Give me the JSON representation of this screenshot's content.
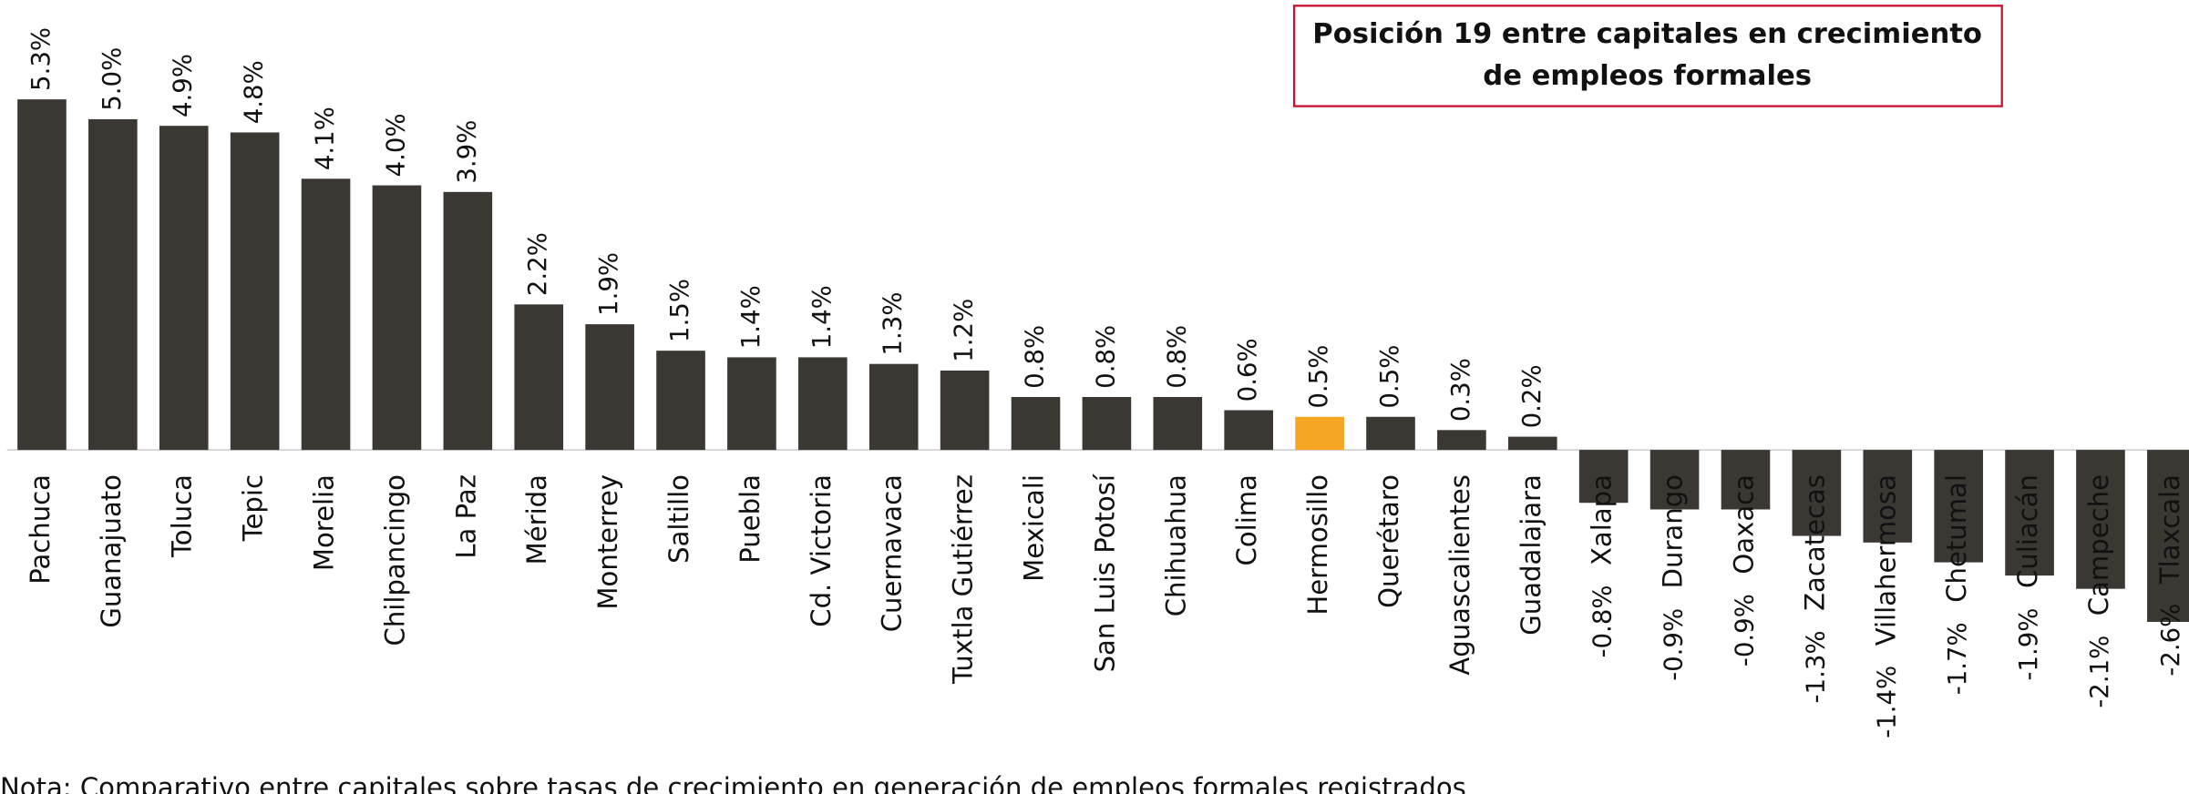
{
  "chart_data": {
    "type": "bar",
    "title": [
      "Posición 19 entre capitales en crecimiento",
      "de empleos formales"
    ],
    "note": "Nota: Comparativo entre capitales sobre tasas de crecimiento en generación de empleos formales registrados",
    "categories": [
      "Pachuca",
      "Guanajuato",
      "Toluca",
      "Tepic",
      "Morelia",
      "Chilpancingo",
      "La Paz",
      "Mérida",
      "Monterrey",
      "Saltillo",
      "Puebla",
      "Cd. Victoria",
      "Cuernavaca",
      "Tuxtla Gutiérrez",
      "Mexicali",
      "San Luis Potosí",
      "Chihuahua",
      "Colima",
      "Hermosillo",
      "Querétaro",
      "Aguascalientes",
      "Guadalajara",
      "Xalapa",
      "Durango",
      "Oaxaca",
      "Zacatecas",
      "Villahermosa",
      "Chetumal",
      "Culiacán",
      "Campeche",
      "Tlaxcala"
    ],
    "values": [
      5.3,
      5.0,
      4.9,
      4.8,
      4.1,
      4.0,
      3.9,
      2.2,
      1.9,
      1.5,
      1.4,
      1.4,
      1.3,
      1.2,
      0.8,
      0.8,
      0.8,
      0.6,
      0.5,
      0.5,
      0.3,
      0.2,
      -0.8,
      -0.9,
      -0.9,
      -1.3,
      -1.4,
      -1.7,
      -1.9,
      -2.1,
      -2.6
    ],
    "value_labels": [
      "5.3%",
      "5.0%",
      "4.9%",
      "4.8%",
      "4.1%",
      "4.0%",
      "3.9%",
      "2.2%",
      "1.9%",
      "1.5%",
      "1.4%",
      "1.4%",
      "1.3%",
      "1.2%",
      "0.8%",
      "0.8%",
      "0.8%",
      "0.6%",
      "0.5%",
      "0.5%",
      "0.3%",
      "0.2%",
      "-0.8%",
      "-0.9%",
      "-0.9%",
      "-1.3%",
      "-1.4%",
      "-1.7%",
      "-1.9%",
      "-2.1%",
      "-2.6%"
    ],
    "colors": [
      "#3b3733",
      "#3b3733",
      "#3b3733",
      "#3b3733",
      "#3b3733",
      "#3b3733",
      "#3b3733",
      "#3b3733",
      "#3b3733",
      "#3b3733",
      "#3b3733",
      "#3b3733",
      "#3b3733",
      "#3b3733",
      "#3b3733",
      "#3b3733",
      "#3b3733",
      "#3b3733",
      "#f5a623",
      "#3b3733",
      "#3b3733",
      "#3b3733",
      "#3b3733",
      "#3b3733",
      "#3b3733",
      "#3b3733",
      "#3b3733",
      "#3b3733",
      "#3b3733",
      "#3b3733",
      "#3b3733"
    ],
    "ylim": [
      -5.2,
      6.8
    ]
  }
}
